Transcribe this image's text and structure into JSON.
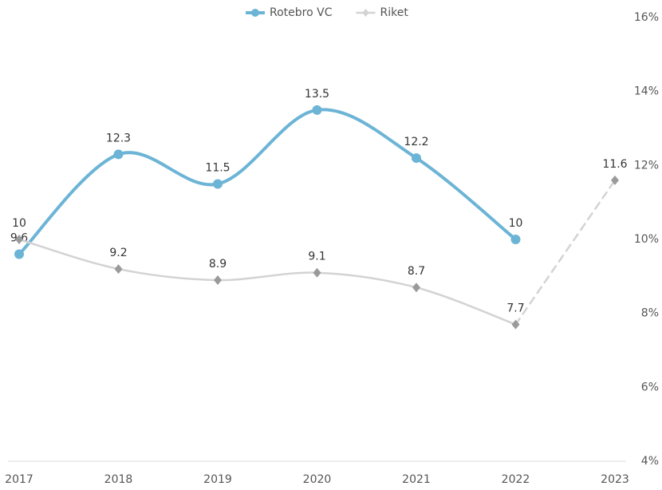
{
  "chart_data": {
    "type": "line",
    "categories": [
      "2017",
      "2018",
      "2019",
      "2020",
      "2021",
      "2022",
      "2023"
    ],
    "series": [
      {
        "name": "Rotebro VC",
        "color": "#6cb4d6",
        "marker_color": "#6cb4d6",
        "marker": "circle",
        "values": [
          9.6,
          12.3,
          11.5,
          13.5,
          12.2,
          10,
          null
        ]
      },
      {
        "name": "Riket",
        "color": "#d3d3d3",
        "marker_color": "#9a9a9a",
        "marker": "diamond",
        "dashed_from_index": 5,
        "values": [
          10,
          9.2,
          8.9,
          9.1,
          8.7,
          7.7,
          11.6
        ]
      }
    ],
    "ylim": [
      4,
      16
    ],
    "yticks": [
      {
        "value": 4,
        "label": "4%"
      },
      {
        "value": 6,
        "label": "6%"
      },
      {
        "value": 8,
        "label": "8%"
      },
      {
        "value": 10,
        "label": "10%"
      },
      {
        "value": 12,
        "label": "12%"
      },
      {
        "value": 14,
        "label": "14%"
      },
      {
        "value": 16,
        "label": "16%"
      }
    ],
    "y_axis_side": "right",
    "legend": "top"
  }
}
